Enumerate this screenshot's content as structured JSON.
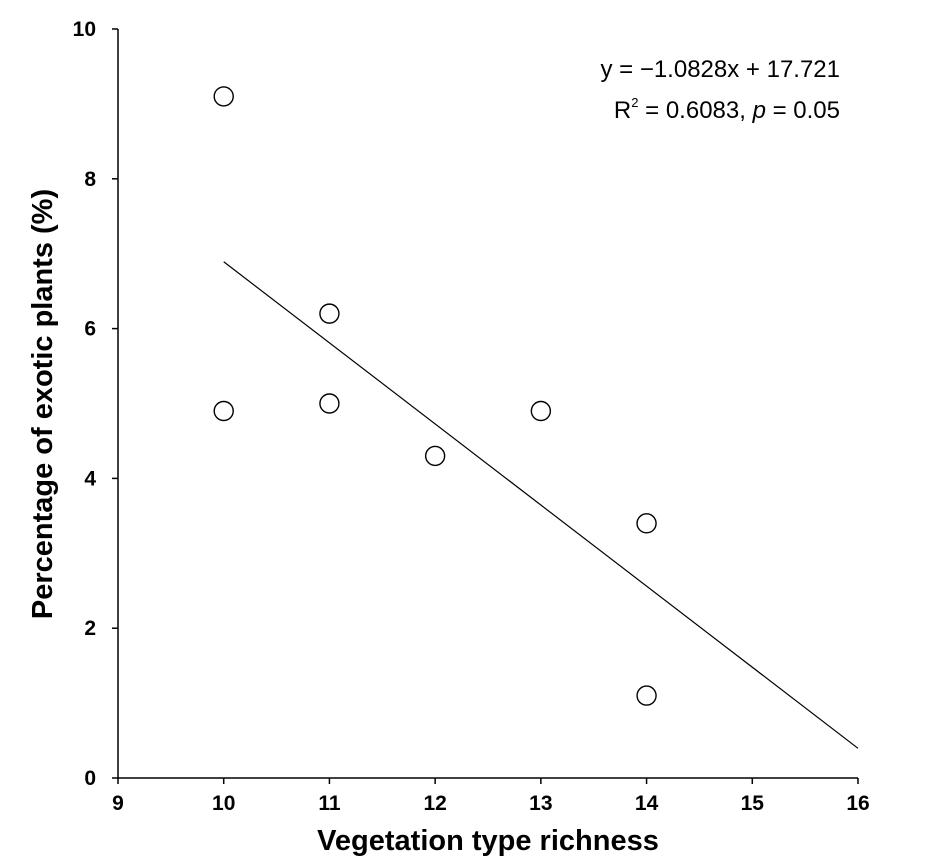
{
  "chart_data": {
    "type": "scatter",
    "xlabel": "Vegetation type richness",
    "ylabel": "Percentage of exotic plants (%)",
    "xlim": [
      9,
      16
    ],
    "ylim": [
      0,
      10
    ],
    "xticks": [
      "9",
      "10",
      "11",
      "12",
      "13",
      "14",
      "15",
      "16"
    ],
    "yticks": [
      "0",
      "2",
      "4",
      "6",
      "8",
      "10"
    ],
    "points": [
      {
        "x": 10,
        "y": 9.1
      },
      {
        "x": 10,
        "y": 4.9
      },
      {
        "x": 11,
        "y": 6.2
      },
      {
        "x": 11,
        "y": 5.0
      },
      {
        "x": 12,
        "y": 4.3
      },
      {
        "x": 13,
        "y": 4.9
      },
      {
        "x": 14,
        "y": 3.4
      },
      {
        "x": 14,
        "y": 1.1
      }
    ],
    "trendline": {
      "slope": -1.0828,
      "intercept": 17.721,
      "x_range": [
        10,
        16
      ]
    },
    "annotation": {
      "equation": "y = −1.0828x + 17.721",
      "r_label": "R",
      "r_sup": "2",
      "r_value": " = 0.6083, ",
      "p_label": "p",
      "p_value": " = 0.05"
    },
    "grid": false,
    "legend": "none"
  }
}
